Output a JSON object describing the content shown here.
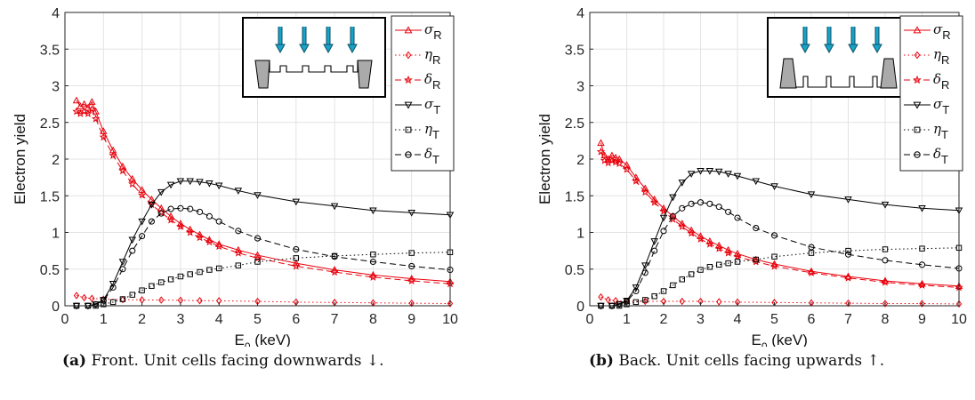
{
  "colors": {
    "reflection": "#e8000b",
    "transmission": "#000000",
    "arrow": "#1aa3c8",
    "unit_cell": "#aaaaaa"
  },
  "chart_data": [
    {
      "type": "line",
      "id": "front",
      "caption_tag": "(a)",
      "caption_text": "Front. Unit cells facing downwards ↓.",
      "xlabel": "E",
      "xlabel_sub": "0",
      "xlabel_unit": " (keV)",
      "ylabel": "Electron yield",
      "xlim": [
        0,
        10
      ],
      "ylim": [
        0,
        4
      ],
      "xticks": [
        0,
        1,
        2,
        3,
        4,
        5,
        6,
        7,
        8,
        9,
        10
      ],
      "yticks": [
        0,
        0.5,
        1,
        1.5,
        2,
        2.5,
        3,
        3.5,
        4
      ],
      "grid": true,
      "legend_position": "top-right",
      "inset": "unit cells facing downwards, beam arrows from top",
      "series": [
        {
          "name": "σ",
          "sub": "R",
          "color": "#e8000b",
          "marker": "triangle-up",
          "dash": "solid",
          "x": [
            0.3,
            0.4,
            0.5,
            0.6,
            0.7,
            0.8,
            1.0,
            1.25,
            1.5,
            1.75,
            2.0,
            2.25,
            2.5,
            2.75,
            3.0,
            3.25,
            3.5,
            3.75,
            4.0,
            4.5,
            5,
            6,
            7,
            8,
            9,
            10
          ],
          "y": [
            2.8,
            2.72,
            2.75,
            2.7,
            2.78,
            2.65,
            2.38,
            2.12,
            1.9,
            1.73,
            1.58,
            1.45,
            1.33,
            1.22,
            1.12,
            1.04,
            0.97,
            0.9,
            0.84,
            0.76,
            0.69,
            0.58,
            0.49,
            0.42,
            0.37,
            0.33
          ]
        },
        {
          "name": "η",
          "sub": "R",
          "color": "#e8000b",
          "marker": "diamond",
          "dash": "dotted",
          "x": [
            0.3,
            0.5,
            0.7,
            1.0,
            1.5,
            2.0,
            2.5,
            3.0,
            3.5,
            4.0,
            5,
            6,
            7,
            8,
            9,
            10
          ],
          "y": [
            0.14,
            0.11,
            0.1,
            0.09,
            0.085,
            0.08,
            0.078,
            0.075,
            0.07,
            0.068,
            0.06,
            0.05,
            0.045,
            0.04,
            0.035,
            0.03
          ]
        },
        {
          "name": "δ",
          "sub": "R",
          "color": "#e8000b",
          "marker": "star",
          "dash": "dashed",
          "x": [
            0.3,
            0.4,
            0.5,
            0.6,
            0.7,
            0.8,
            1.0,
            1.25,
            1.5,
            1.75,
            2.0,
            2.25,
            2.5,
            2.75,
            3.0,
            3.25,
            3.5,
            3.75,
            4.0,
            4.5,
            5,
            6,
            7,
            8,
            9,
            10
          ],
          "y": [
            2.65,
            2.62,
            2.65,
            2.62,
            2.68,
            2.55,
            2.3,
            2.05,
            1.84,
            1.66,
            1.51,
            1.38,
            1.27,
            1.17,
            1.08,
            1.0,
            0.93,
            0.87,
            0.81,
            0.72,
            0.65,
            0.54,
            0.46,
            0.39,
            0.34,
            0.3
          ]
        },
        {
          "name": "σ",
          "sub": "T",
          "color": "#000000",
          "marker": "triangle-down",
          "dash": "solid",
          "x": [
            0.3,
            0.6,
            0.8,
            1.0,
            1.25,
            1.5,
            1.75,
            2.0,
            2.25,
            2.5,
            2.75,
            3.0,
            3.25,
            3.5,
            3.75,
            4.0,
            4.5,
            5,
            6,
            7,
            8,
            9,
            10
          ],
          "y": [
            0.0,
            0.0,
            0.02,
            0.08,
            0.3,
            0.6,
            0.9,
            1.15,
            1.38,
            1.55,
            1.65,
            1.7,
            1.7,
            1.69,
            1.67,
            1.64,
            1.57,
            1.51,
            1.42,
            1.36,
            1.3,
            1.27,
            1.24
          ]
        },
        {
          "name": "η",
          "sub": "T",
          "color": "#000000",
          "marker": "square",
          "dash": "dotted",
          "x": [
            0.3,
            0.6,
            0.8,
            1.0,
            1.25,
            1.5,
            1.75,
            2.0,
            2.25,
            2.5,
            2.75,
            3.0,
            3.25,
            3.5,
            3.75,
            4.0,
            4.5,
            5,
            6,
            7,
            8,
            9,
            10
          ],
          "y": [
            0.0,
            0.0,
            0.0,
            0.02,
            0.05,
            0.09,
            0.15,
            0.21,
            0.27,
            0.32,
            0.36,
            0.4,
            0.43,
            0.46,
            0.49,
            0.51,
            0.55,
            0.6,
            0.65,
            0.68,
            0.7,
            0.72,
            0.73
          ]
        },
        {
          "name": "δ",
          "sub": "T",
          "color": "#000000",
          "marker": "circle",
          "dash": "dashed",
          "x": [
            0.3,
            0.6,
            0.8,
            1.0,
            1.25,
            1.5,
            1.75,
            2.0,
            2.25,
            2.5,
            2.75,
            3.0,
            3.25,
            3.5,
            3.75,
            4.0,
            4.5,
            5,
            6,
            7,
            8,
            9,
            10
          ],
          "y": [
            0.0,
            0.0,
            0.02,
            0.07,
            0.25,
            0.5,
            0.75,
            0.95,
            1.15,
            1.26,
            1.32,
            1.33,
            1.32,
            1.28,
            1.22,
            1.15,
            1.02,
            0.92,
            0.77,
            0.67,
            0.6,
            0.54,
            0.49
          ]
        }
      ]
    },
    {
      "type": "line",
      "id": "back",
      "caption_tag": "(b)",
      "caption_text": "Back. Unit cells facing upwards ↑.",
      "xlabel": "E",
      "xlabel_sub": "0",
      "xlabel_unit": " (keV)",
      "ylabel": "Electron yield",
      "xlim": [
        0,
        10
      ],
      "ylim": [
        0,
        4
      ],
      "xticks": [
        0,
        1,
        2,
        3,
        4,
        5,
        6,
        7,
        8,
        9,
        10
      ],
      "yticks": [
        0,
        0.5,
        1,
        1.5,
        2,
        2.5,
        3,
        3.5,
        4
      ],
      "grid": true,
      "legend_position": "top-right",
      "inset": "unit cells facing upwards, beam arrows from top",
      "series": [
        {
          "name": "σ",
          "sub": "R",
          "color": "#e8000b",
          "marker": "triangle-up",
          "dash": "solid",
          "x": [
            0.3,
            0.4,
            0.5,
            0.6,
            0.7,
            0.8,
            1.0,
            1.25,
            1.5,
            1.75,
            2.0,
            2.25,
            2.5,
            2.75,
            3.0,
            3.25,
            3.5,
            3.75,
            4.0,
            4.5,
            5,
            6,
            7,
            8,
            9,
            10
          ],
          "y": [
            2.22,
            2.05,
            2.0,
            2.05,
            2.02,
            2.0,
            1.92,
            1.75,
            1.6,
            1.45,
            1.33,
            1.22,
            1.12,
            1.03,
            0.95,
            0.88,
            0.82,
            0.76,
            0.71,
            0.63,
            0.57,
            0.47,
            0.4,
            0.34,
            0.3,
            0.27
          ]
        },
        {
          "name": "η",
          "sub": "R",
          "color": "#e8000b",
          "marker": "diamond",
          "dash": "dotted",
          "x": [
            0.3,
            0.5,
            0.7,
            1.0,
            1.5,
            2.0,
            2.5,
            3.0,
            3.5,
            4.0,
            5,
            6,
            7,
            8,
            9,
            10
          ],
          "y": [
            0.12,
            0.08,
            0.07,
            0.06,
            0.06,
            0.06,
            0.06,
            0.06,
            0.055,
            0.05,
            0.045,
            0.04,
            0.035,
            0.03,
            0.03,
            0.025
          ]
        },
        {
          "name": "δ",
          "sub": "R",
          "color": "#e8000b",
          "marker": "star",
          "dash": "dashed",
          "x": [
            0.3,
            0.4,
            0.5,
            0.6,
            0.7,
            0.8,
            1.0,
            1.25,
            1.5,
            1.75,
            2.0,
            2.25,
            2.5,
            2.75,
            3.0,
            3.25,
            3.5,
            3.75,
            4.0,
            4.5,
            5,
            6,
            7,
            8,
            9,
            10
          ],
          "y": [
            2.1,
            1.98,
            1.95,
            1.98,
            1.96,
            1.94,
            1.86,
            1.7,
            1.55,
            1.41,
            1.29,
            1.18,
            1.08,
            0.99,
            0.91,
            0.84,
            0.78,
            0.72,
            0.67,
            0.6,
            0.54,
            0.45,
            0.38,
            0.32,
            0.28,
            0.25
          ]
        },
        {
          "name": "σ",
          "sub": "T",
          "color": "#000000",
          "marker": "triangle-down",
          "dash": "solid",
          "x": [
            0.3,
            0.6,
            0.8,
            1.0,
            1.25,
            1.5,
            1.75,
            2.0,
            2.25,
            2.5,
            2.75,
            3.0,
            3.25,
            3.5,
            3.75,
            4.0,
            4.5,
            5,
            6,
            7,
            8,
            9,
            10
          ],
          "y": [
            0.0,
            0.0,
            0.02,
            0.07,
            0.25,
            0.55,
            0.88,
            1.2,
            1.48,
            1.68,
            1.8,
            1.84,
            1.84,
            1.83,
            1.8,
            1.77,
            1.7,
            1.63,
            1.52,
            1.45,
            1.38,
            1.33,
            1.3
          ]
        },
        {
          "name": "η",
          "sub": "T",
          "color": "#000000",
          "marker": "square",
          "dash": "dotted",
          "x": [
            0.3,
            0.6,
            0.8,
            1.0,
            1.25,
            1.5,
            1.75,
            2.0,
            2.25,
            2.5,
            2.75,
            3.0,
            3.25,
            3.5,
            3.75,
            4.0,
            4.5,
            5,
            6,
            7,
            8,
            9,
            10
          ],
          "y": [
            0.0,
            0.0,
            0.0,
            0.02,
            0.05,
            0.08,
            0.13,
            0.2,
            0.28,
            0.36,
            0.43,
            0.49,
            0.53,
            0.56,
            0.58,
            0.6,
            0.63,
            0.67,
            0.72,
            0.75,
            0.77,
            0.78,
            0.79
          ]
        },
        {
          "name": "δ",
          "sub": "T",
          "color": "#000000",
          "marker": "circle",
          "dash": "dashed",
          "x": [
            0.3,
            0.6,
            0.8,
            1.0,
            1.25,
            1.5,
            1.75,
            2.0,
            2.25,
            2.5,
            2.75,
            3.0,
            3.25,
            3.5,
            3.75,
            4.0,
            4.5,
            5,
            6,
            7,
            8,
            9,
            10
          ],
          "y": [
            0.0,
            0.0,
            0.02,
            0.06,
            0.2,
            0.45,
            0.75,
            1.02,
            1.22,
            1.33,
            1.39,
            1.41,
            1.39,
            1.35,
            1.28,
            1.2,
            1.06,
            0.96,
            0.8,
            0.7,
            0.62,
            0.56,
            0.51
          ]
        }
      ]
    }
  ]
}
